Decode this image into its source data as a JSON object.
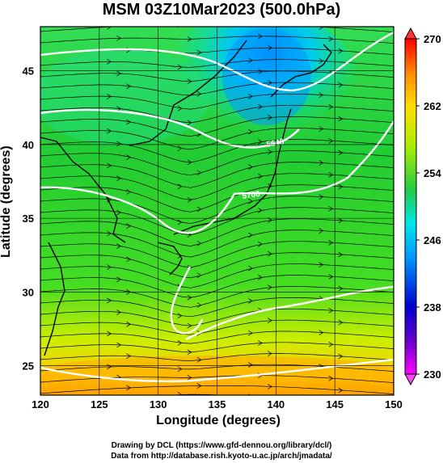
{
  "title": "MSM 03Z10Mar2023 (500.0hPa)",
  "xlabel": "Longitude (degrees)",
  "ylabel": "Latitude  (degrees)",
  "credits": {
    "line1": "Drawing by DCL (https://www.gfd-dennou.org/library/dcl/)",
    "line2": "Data from http://database.rish.kyoto-u.ac.jp/arch/jmadata/"
  },
  "chart_data": {
    "type": "heatmap",
    "map": "temperature field with streamlines and contours over East Asia / Japan",
    "xlim": [
      120,
      150
    ],
    "ylim": [
      23,
      48
    ],
    "xticks": [
      120,
      125,
      130,
      135,
      140,
      145,
      150
    ],
    "yticks": [
      25,
      30,
      35,
      40,
      45
    ],
    "grid": true,
    "colorbar": {
      "ticks": [
        230,
        238,
        246,
        254,
        262,
        270
      ],
      "range": [
        230,
        270
      ],
      "colors": [
        "#ff00ff",
        "#0000cc",
        "#00aaff",
        "#00e6cc",
        "#22cc22",
        "#ccee00",
        "#ffcc00",
        "#ff6600",
        "#ff0000"
      ]
    },
    "contour_labels": [
      "5640",
      "5700"
    ]
  }
}
